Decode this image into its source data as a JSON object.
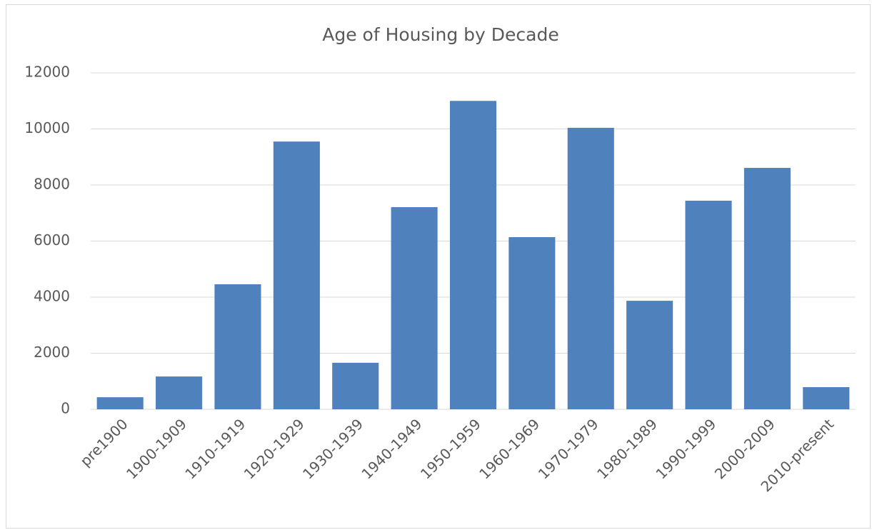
{
  "chart_data": {
    "type": "bar",
    "title": "Age of Housing by Decade",
    "categories": [
      "pre1900",
      "1900-1909",
      "1910-1919",
      "1920-1929",
      "1930-1939",
      "1940-1949",
      "1950-1959",
      "1960-1969",
      "1970-1979",
      "1980-1989",
      "1990-1999",
      "2000-2009",
      "2010-present"
    ],
    "values": [
      430,
      1170,
      4460,
      9550,
      1660,
      7210,
      11000,
      6140,
      10040,
      3870,
      7440,
      8610,
      790
    ],
    "color": "#4f81bd",
    "ylim": [
      0,
      12000
    ],
    "yticks": [
      0,
      2000,
      4000,
      6000,
      8000,
      10000,
      12000
    ],
    "grid": true
  }
}
